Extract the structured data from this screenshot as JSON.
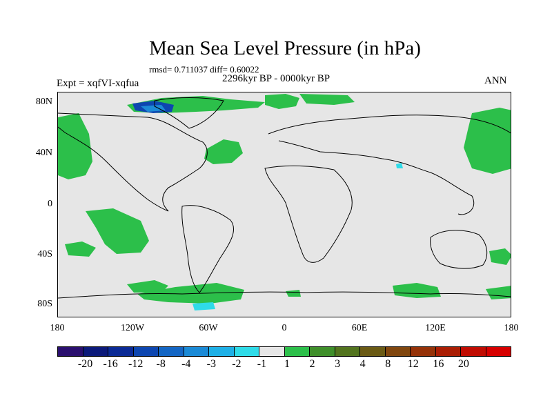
{
  "title": "Mean Sea Level Pressure (in hPa)",
  "stats_line": "rmsd= 0.711037 diff= 0.60022",
  "experiment_label": "Expt = xqfVI-xqfua",
  "period_label": "2296kyr BP - 0000kyr BP",
  "season_label": "ANN",
  "lat_labels": [
    "80N",
    "40N",
    "0",
    "40S",
    "80S"
  ],
  "lon_labels": [
    "180",
    "120W",
    "60W",
    "0",
    "60E",
    "120E",
    "180"
  ],
  "colorbar": {
    "colors": [
      "#2a0f6e",
      "#0c1a7a",
      "#0b2a95",
      "#0d46b0",
      "#1466c4",
      "#1b8ad6",
      "#1fb0e6",
      "#2fdbe8",
      "#e6e6e6",
      "#2cbf4a",
      "#3f8f2a",
      "#52741e",
      "#6a5a14",
      "#80460e",
      "#953208",
      "#aa1e04",
      "#c00c02",
      "#d60000"
    ],
    "labels": [
      "-20",
      "-16",
      "-12",
      "-8",
      "-4",
      "-3",
      "-2",
      "-1",
      "1",
      "2",
      "3",
      "4",
      "8",
      "12",
      "16",
      "20"
    ]
  },
  "colors": {
    "background": "#e6e6e6",
    "positive_anomaly": "#2cbf4a",
    "negative_anomaly": "#1b8ad6"
  }
}
